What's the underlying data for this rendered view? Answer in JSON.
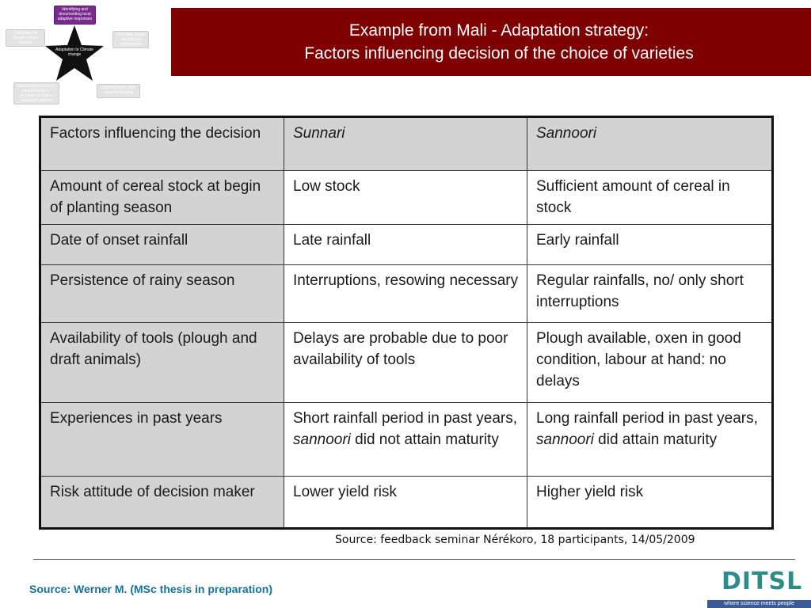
{
  "diagram": {
    "top": "Identifying and documenting local adaptive responses",
    "left": "Estimation of climate change impacts",
    "right": "Providing active learning by communities",
    "bottom_left": "Developing the policy environment to increase access to adaptation options",
    "bottom_right": "Dissemination and capacity building",
    "center": "Adaptation to Climate change"
  },
  "title": {
    "line1": "Example from Mali - Adaptation strategy:",
    "line2": "Factors influencing decision of the choice of varieties"
  },
  "table": {
    "header": {
      "factor": "Factors influencing the decision",
      "variety1": "Sunnari",
      "variety2": "Sannoori"
    },
    "rows": [
      {
        "factor": "Amount of cereal stock at begin of planting season",
        "sunnari": "Low stock",
        "sannoori": "Sufficient amount of cereal in stock"
      },
      {
        "factor": "Date of onset rainfall",
        "sunnari": "Late rainfall",
        "sannoori": "Early rainfall"
      },
      {
        "factor": "Persistence of rainy season",
        "sunnari": "Interruptions, resowing necessary",
        "sannoori": "Regular rainfalls, no/ only short interruptions"
      },
      {
        "factor": "Availability of tools (plough and draft animals)",
        "sunnari": "Delays are probable due to poor availability of tools",
        "sannoori": "Plough available, oxen in good condition, labour at hand: no delays"
      },
      {
        "factor": "Experiences in past years",
        "sunnari": {
          "pre": "Short rainfall period in past years, ",
          "em": "sannoori",
          "post": " did not attain maturity"
        },
        "sannoori": {
          "pre": "Long rainfall period in past years, ",
          "em": "sannoori",
          "post": " did attain maturity"
        }
      },
      {
        "factor": "Risk attitude of decision maker",
        "sunnari": "Lower yield risk",
        "sannoori": "Higher yield risk"
      }
    ]
  },
  "source_seminar": "Source: feedback seminar Nérékoro, 18 participants, 14/05/2009",
  "source_thesis": "Source: Werner M. (MSc thesis in preparation)",
  "logo": {
    "word": "DITSL",
    "tagline": "where science meets people"
  },
  "colors": {
    "banner": "#7f0000",
    "header_cell": "#d3d3d3",
    "source_link": "#16709a",
    "logo": "#2f8a8a"
  }
}
